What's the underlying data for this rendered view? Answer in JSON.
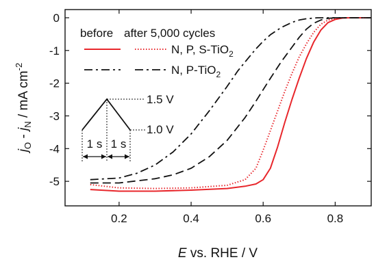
{
  "chart_data": {
    "type": "line",
    "xlabel_var": "E",
    "xlabel_rest": " vs. RHE / V",
    "ylabel": {
      "j1": "j",
      "j1_sub": "O",
      "dash": " - ",
      "j2": "j",
      "j2_sub": "N",
      "units": " / mA cm",
      "units_sup": "-2"
    },
    "xlim": [
      0.05,
      0.9
    ],
    "ylim": [
      -5.75,
      0.25
    ],
    "x_ticks": [
      0.2,
      0.4,
      0.6,
      0.8
    ],
    "x_tick_labels": [
      "0.2",
      "0.4",
      "0.6",
      "0.8"
    ],
    "y_ticks": [
      0,
      -1,
      -2,
      -3,
      -4,
      -5
    ],
    "y_tick_labels": [
      "0",
      "-1",
      "-2",
      "-3",
      "-4",
      "-5"
    ],
    "legend": {
      "header_before": "before",
      "header_after": "after 5,000 cycles",
      "entries": [
        {
          "label": "N, P, S-TiO",
          "label_sub": "2",
          "color": "#e8262b"
        },
        {
          "label": "N, P-TiO",
          "label_sub": "2",
          "color": "#111111"
        }
      ]
    },
    "inset": {
      "upper_potential": "1.5 V",
      "lower_potential": "1.0 V",
      "step1": "1 s",
      "step2": "1 s"
    },
    "series": [
      {
        "material": "N, P, S-TiO2",
        "condition": "before",
        "color": "#e8262b",
        "dash": "solid",
        "x": [
          0.12,
          0.2,
          0.3,
          0.4,
          0.5,
          0.55,
          0.58,
          0.6,
          0.62,
          0.64,
          0.66,
          0.68,
          0.7,
          0.72,
          0.74,
          0.76,
          0.78,
          0.8,
          0.82,
          0.84,
          0.86,
          0.9
        ],
        "y": [
          -5.25,
          -5.3,
          -5.3,
          -5.27,
          -5.22,
          -5.15,
          -5.08,
          -4.95,
          -4.6,
          -3.95,
          -3.2,
          -2.5,
          -1.85,
          -1.25,
          -0.75,
          -0.38,
          -0.15,
          -0.05,
          -0.01,
          0.0,
          0.0,
          0.0
        ]
      },
      {
        "material": "N, P, S-TiO2",
        "condition": "after 5,000 cycles",
        "color": "#e8262b",
        "dash": "dotted",
        "x": [
          0.12,
          0.2,
          0.3,
          0.4,
          0.5,
          0.55,
          0.58,
          0.6,
          0.62,
          0.64,
          0.66,
          0.68,
          0.7,
          0.72,
          0.74,
          0.76,
          0.78,
          0.8,
          0.82,
          0.84,
          0.9
        ],
        "y": [
          -5.1,
          -5.2,
          -5.22,
          -5.2,
          -5.12,
          -4.95,
          -4.6,
          -4.05,
          -3.45,
          -2.85,
          -2.25,
          -1.7,
          -1.2,
          -0.8,
          -0.45,
          -0.2,
          -0.07,
          -0.02,
          0.0,
          0.0,
          0.0
        ]
      },
      {
        "material": "N, P-TiO2",
        "condition": "before",
        "color": "#111111",
        "dash": "dashed",
        "x": [
          0.12,
          0.2,
          0.3,
          0.35,
          0.4,
          0.45,
          0.5,
          0.55,
          0.58,
          0.6,
          0.62,
          0.65,
          0.68,
          0.7,
          0.72,
          0.74,
          0.76,
          0.78,
          0.8,
          0.82,
          0.9
        ],
        "y": [
          -5.05,
          -5.05,
          -4.92,
          -4.8,
          -4.6,
          -4.25,
          -3.75,
          -3.05,
          -2.55,
          -2.2,
          -1.85,
          -1.35,
          -0.9,
          -0.6,
          -0.35,
          -0.17,
          -0.07,
          -0.02,
          0.0,
          0.0,
          0.0
        ]
      },
      {
        "material": "N, P-TiO2",
        "condition": "after 5,000 cycles",
        "color": "#111111",
        "dash": "dashdot",
        "x": [
          0.12,
          0.2,
          0.25,
          0.3,
          0.35,
          0.4,
          0.45,
          0.5,
          0.53,
          0.55,
          0.58,
          0.6,
          0.62,
          0.65,
          0.68,
          0.7,
          0.72,
          0.75,
          0.78,
          0.9
        ],
        "y": [
          -4.95,
          -4.9,
          -4.75,
          -4.5,
          -4.1,
          -3.55,
          -2.85,
          -2.1,
          -1.62,
          -1.35,
          -0.95,
          -0.72,
          -0.52,
          -0.3,
          -0.14,
          -0.07,
          -0.03,
          0.0,
          0.0,
          0.0
        ]
      }
    ]
  }
}
